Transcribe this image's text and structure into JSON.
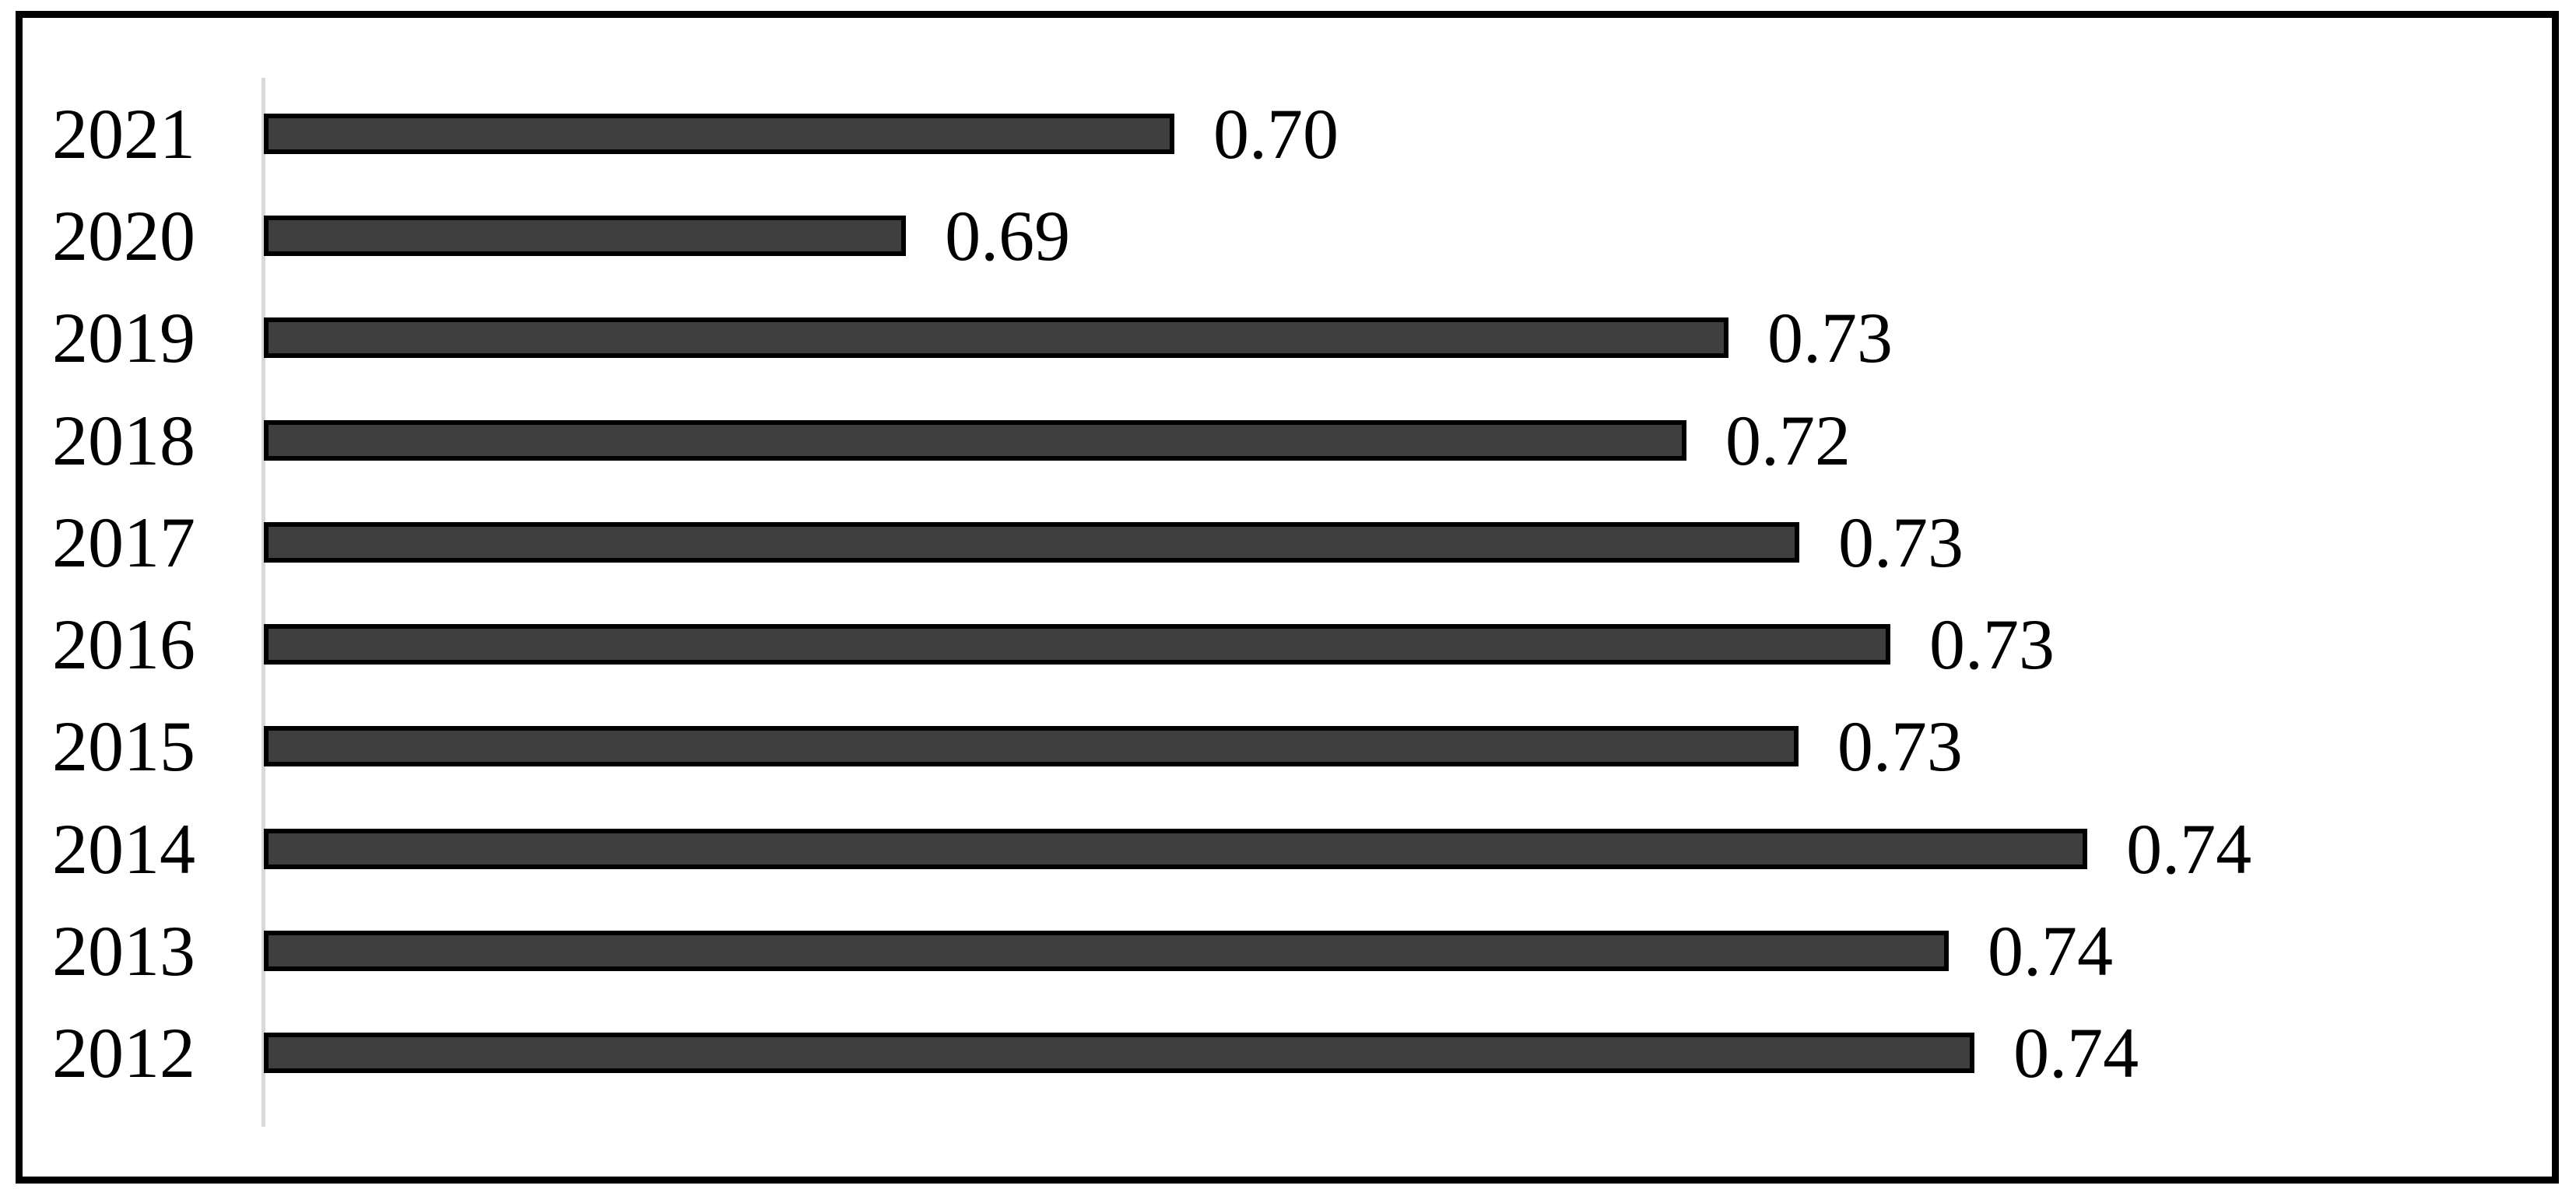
{
  "figure": {
    "background_color": "#FFFFFF",
    "frame_border_color": "#000000"
  },
  "chart_data": {
    "type": "bar",
    "orientation": "horizontal",
    "title": "",
    "xlabel": "",
    "ylabel": "",
    "categories": [
      "2021",
      "2020",
      "2019",
      "2018",
      "2017",
      "2016",
      "2015",
      "2014",
      "2013",
      "2012"
    ],
    "values": [
      0.7,
      0.69,
      0.73,
      0.72,
      0.73,
      0.73,
      0.73,
      0.74,
      0.74,
      0.74
    ],
    "value_labels": [
      "0.70",
      "0.69",
      "0.73",
      "0.72",
      "0.73",
      "0.73",
      "0.73",
      "0.74",
      "0.74",
      "0.74"
    ],
    "bar_length_pct": [
      39.93,
      28.16,
      64.23,
      62.39,
      67.34,
      71.33,
      67.3,
      79.97,
      73.89,
      75.02
    ],
    "xlim_estimated": [
      0.66,
      0.75
    ],
    "grid": false,
    "legend": false,
    "value_axis_ticks_visible": false,
    "data_labels_position": "outside-end",
    "bar_color": "#3F3F3F",
    "bar_border_color": "#000000",
    "axis_line_color": "#D9D9D9",
    "text_color": "#000000"
  }
}
